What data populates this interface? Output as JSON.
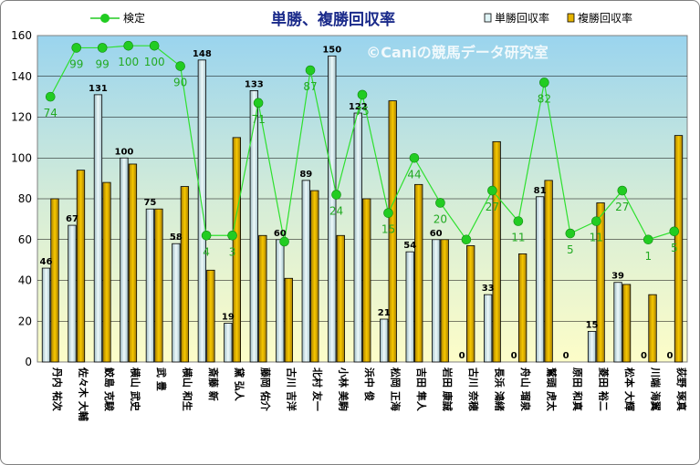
{
  "chart_data": {
    "type": "bar",
    "title": "単勝、複勝回収率",
    "watermark": "©Caniの競馬データ研究室",
    "categories": [
      "丹内 祐次",
      "佐々木 大輔",
      "鮫島 克駿",
      "横山 武史",
      "武 豊",
      "横山 和生",
      "斎藤 新",
      "黛 弘人",
      "藤岡 佑介",
      "古川 吉洋",
      "北村 友一",
      "小林 美駒",
      "浜中 俊",
      "松岡 正海",
      "吉田 隼人",
      "岩田 康誠",
      "古川 奈穂",
      "長浜 鴻緒",
      "舟山 瑠泉",
      "鷲頭 虎太",
      "原田 和真",
      "菱田 裕二",
      "松本 大輝",
      "川端 海翼",
      "荻野 琢真"
    ],
    "ylim": [
      0,
      160
    ],
    "yticks": [
      "0",
      "20",
      "40",
      "60",
      "80",
      "100",
      "120",
      "140",
      "160"
    ],
    "grid": true,
    "legend_position": "top",
    "series": [
      {
        "name": "単勝回収率",
        "kind": "bar",
        "color": "#dff4f6",
        "values": [
          46,
          67,
          131,
          100,
          75,
          58,
          148,
          19,
          133,
          60,
          89,
          150,
          122,
          21,
          54,
          60,
          0,
          33,
          0,
          81,
          0,
          15,
          39,
          0,
          0
        ],
        "labels": [
          "46",
          "67",
          "131",
          "100",
          "75",
          "58",
          "148",
          "19",
          "133",
          "60",
          "89",
          "150",
          "122",
          "21",
          "54",
          "60",
          "0",
          "33",
          "0",
          "81",
          "0",
          "15",
          "39",
          "0",
          "0"
        ]
      },
      {
        "name": "複勝回収率",
        "kind": "bar",
        "color": "#e6b400",
        "values": [
          80,
          94,
          88,
          97,
          75,
          86,
          45,
          110,
          62,
          41,
          84,
          62,
          80,
          128,
          87,
          60,
          57,
          108,
          53,
          89,
          0,
          78,
          38,
          33,
          111
        ]
      },
      {
        "name": "検定",
        "kind": "line",
        "color": "#22cc22",
        "values": [
          130,
          154,
          154,
          155,
          155,
          145,
          62,
          62,
          127,
          59,
          143,
          82,
          131,
          73,
          100,
          78,
          60,
          84,
          69,
          137,
          63,
          69,
          84,
          60,
          64
        ],
        "labels": [
          "74",
          "99",
          "99",
          "100",
          "100",
          "90",
          "4",
          "3",
          "71",
          "",
          "87",
          "24",
          "75",
          "15",
          "44",
          "20",
          "",
          "27",
          "11",
          "82",
          "5",
          "11",
          "27",
          "1",
          "5"
        ]
      }
    ]
  }
}
